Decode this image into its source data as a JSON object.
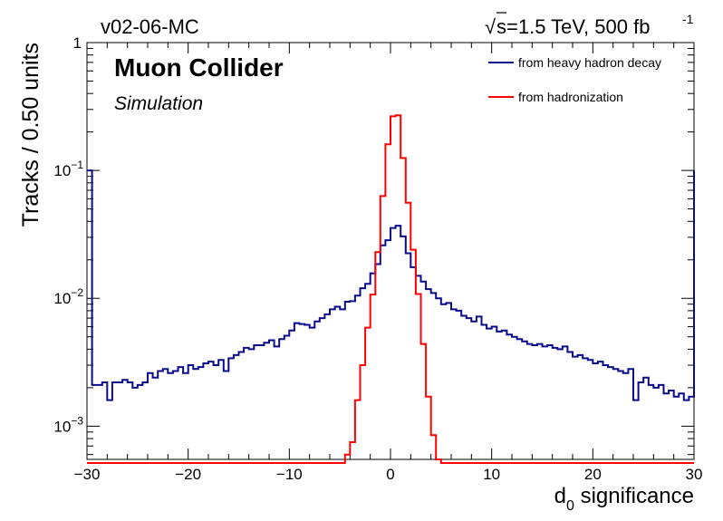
{
  "header": {
    "left_label": "v02-06-MC",
    "right_label_prefix": "s=1.5 TeV, 500 fb",
    "right_label_sup": "-1"
  },
  "labels": {
    "experiment": "Muon Collider",
    "status": "Simulation"
  },
  "chart_data": {
    "type": "line",
    "style": "step-histogram",
    "title": "",
    "xlabel_main": "d",
    "xlabel_sub": "0",
    "xlabel_rest": " significance",
    "ylabel": "Tracks / 0.50 units",
    "xlim": [
      -30,
      30
    ],
    "ylim": [
      0.00055,
      1.0
    ],
    "yscale": "log",
    "bin_width": 0.5,
    "x_ticks": [
      "−30",
      "−20",
      "−10",
      "0",
      "10",
      "20",
      "30"
    ],
    "x_tick_values": [
      -30,
      -20,
      -10,
      0,
      10,
      20,
      30
    ],
    "y_ticks": [
      {
        "value": 1.0,
        "base": "1",
        "exp": ""
      },
      {
        "value": 0.1,
        "base": "10",
        "exp": "−1"
      },
      {
        "value": 0.01,
        "base": "10",
        "exp": "−2"
      },
      {
        "value": 0.001,
        "base": "10",
        "exp": "−3"
      }
    ],
    "legend_position": "top-right",
    "series": [
      {
        "name": "from heavy hadron decay",
        "color": "#0a0a8c",
        "points": [
          [
            -30,
            0.1
          ],
          [
            -29.5,
            0.0021
          ],
          [
            -29,
            0.0021
          ],
          [
            -28.5,
            0.0022
          ],
          [
            -28,
            0.0016
          ],
          [
            -27.5,
            0.0022
          ],
          [
            -27,
            0.0022
          ],
          [
            -26.5,
            0.0023
          ],
          [
            -26,
            0.0022
          ],
          [
            -25.5,
            0.002
          ],
          [
            -25,
            0.0021
          ],
          [
            -24.5,
            0.0022
          ],
          [
            -24,
            0.0026
          ],
          [
            -23.5,
            0.0024
          ],
          [
            -23,
            0.0027
          ],
          [
            -22.5,
            0.0028
          ],
          [
            -22,
            0.0026
          ],
          [
            -21.5,
            0.0027
          ],
          [
            -21,
            0.0029
          ],
          [
            -20.5,
            0.0026
          ],
          [
            -20,
            0.003
          ],
          [
            -19.5,
            0.0028
          ],
          [
            -19,
            0.0029
          ],
          [
            -18.5,
            0.0031
          ],
          [
            -18,
            0.0032
          ],
          [
            -17.5,
            0.003
          ],
          [
            -17,
            0.0033
          ],
          [
            -16.5,
            0.0027
          ],
          [
            -16,
            0.0034
          ],
          [
            -15.5,
            0.0036
          ],
          [
            -15,
            0.0038
          ],
          [
            -14.5,
            0.0041
          ],
          [
            -14,
            0.004
          ],
          [
            -13.5,
            0.0043
          ],
          [
            -13,
            0.0043
          ],
          [
            -12.5,
            0.0045
          ],
          [
            -12,
            0.0047
          ],
          [
            -11.5,
            0.0042
          ],
          [
            -11,
            0.0048
          ],
          [
            -10.5,
            0.0051
          ],
          [
            -10,
            0.0056
          ],
          [
            -9.5,
            0.0064
          ],
          [
            -9,
            0.0063
          ],
          [
            -8.5,
            0.0062
          ],
          [
            -8,
            0.0059
          ],
          [
            -7.5,
            0.0066
          ],
          [
            -7,
            0.007
          ],
          [
            -6.5,
            0.0075
          ],
          [
            -6,
            0.0082
          ],
          [
            -5.5,
            0.0086
          ],
          [
            -5,
            0.0082
          ],
          [
            -4.5,
            0.0094
          ],
          [
            -4,
            0.0095
          ],
          [
            -3.5,
            0.0105
          ],
          [
            -3,
            0.012
          ],
          [
            -2.5,
            0.013
          ],
          [
            -2,
            0.0157
          ],
          [
            -1.5,
            0.0185
          ],
          [
            -1,
            0.026
          ],
          [
            -0.5,
            0.0285
          ],
          [
            0,
            0.0355
          ],
          [
            0.5,
            0.037
          ],
          [
            1,
            0.0305
          ],
          [
            1.5,
            0.0225
          ],
          [
            2,
            0.0175
          ],
          [
            2.5,
            0.015
          ],
          [
            3,
            0.0135
          ],
          [
            3.5,
            0.0118
          ],
          [
            4,
            0.011
          ],
          [
            4.5,
            0.01
          ],
          [
            5,
            0.009
          ],
          [
            5.5,
            0.0092
          ],
          [
            6,
            0.0082
          ],
          [
            6.5,
            0.008
          ],
          [
            7,
            0.0073
          ],
          [
            7.5,
            0.007
          ],
          [
            8,
            0.0066
          ],
          [
            8.5,
            0.0072
          ],
          [
            9,
            0.0062
          ],
          [
            9.5,
            0.0058
          ],
          [
            10,
            0.006
          ],
          [
            10.5,
            0.0055
          ],
          [
            11,
            0.0056
          ],
          [
            11.5,
            0.0052
          ],
          [
            12,
            0.005
          ],
          [
            12.5,
            0.0048
          ],
          [
            13,
            0.0046
          ],
          [
            13.5,
            0.0044
          ],
          [
            14,
            0.0043
          ],
          [
            14.5,
            0.0044
          ],
          [
            15,
            0.0042
          ],
          [
            15.5,
            0.0043
          ],
          [
            16,
            0.0041
          ],
          [
            16.5,
            0.004
          ],
          [
            17,
            0.0042
          ],
          [
            17.5,
            0.0038
          ],
          [
            18,
            0.0035
          ],
          [
            18.5,
            0.0036
          ],
          [
            19,
            0.0034
          ],
          [
            19.5,
            0.0033
          ],
          [
            20,
            0.0031
          ],
          [
            20.5,
            0.0032
          ],
          [
            21,
            0.003
          ],
          [
            21.5,
            0.0029
          ],
          [
            22,
            0.0028
          ],
          [
            22.5,
            0.0027
          ],
          [
            23,
            0.0026
          ],
          [
            23.5,
            0.0028
          ],
          [
            24,
            0.0016
          ],
          [
            24.5,
            0.0022
          ],
          [
            25,
            0.0024
          ],
          [
            25.5,
            0.0021
          ],
          [
            26,
            0.002
          ],
          [
            26.5,
            0.0021
          ],
          [
            27,
            0.0018
          ],
          [
            27.5,
            0.0019
          ],
          [
            28,
            0.0017
          ],
          [
            28.5,
            0.0018
          ],
          [
            29,
            0.0016
          ],
          [
            29.5,
            0.0017
          ],
          [
            30,
            0.1
          ]
        ]
      },
      {
        "name": "from hadronization",
        "color": "#ff0000",
        "points": [
          [
            -30,
            0.0004
          ],
          [
            -5,
            0.0004
          ],
          [
            -4.5,
            0.0006
          ],
          [
            -4,
            0.00075
          ],
          [
            -3.5,
            0.0016
          ],
          [
            -3,
            0.003
          ],
          [
            -2.5,
            0.0059
          ],
          [
            -2,
            0.0107
          ],
          [
            -1.5,
            0.023
          ],
          [
            -1,
            0.063
          ],
          [
            -0.5,
            0.16
          ],
          [
            0,
            0.265
          ],
          [
            0.5,
            0.27
          ],
          [
            1,
            0.125
          ],
          [
            1.5,
            0.056
          ],
          [
            2,
            0.024
          ],
          [
            2.5,
            0.0108
          ],
          [
            3,
            0.0044
          ],
          [
            3.5,
            0.0017
          ],
          [
            4,
            0.00085
          ],
          [
            4.5,
            0.00055
          ],
          [
            5,
            0.0004
          ],
          [
            30,
            0.0004
          ]
        ]
      }
    ]
  }
}
